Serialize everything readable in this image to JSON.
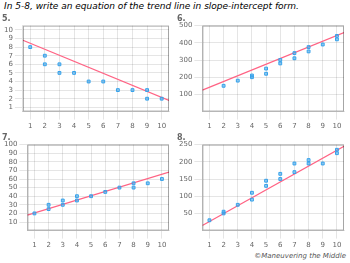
{
  "title": "In 5-8, write an equation of the trend line in slope-intercept form.",
  "annotations": [
    "©Maneuvering the Middle"
  ],
  "chart_data": [
    {
      "type": "scatter",
      "title": "5.",
      "grid": true,
      "xlim": [
        0.5,
        10.5
      ],
      "ylim": [
        0.5,
        10.5
      ],
      "xticks": [
        1,
        2,
        3,
        4,
        5,
        6,
        7,
        8,
        9,
        10
      ],
      "yticks": [
        1,
        2,
        3,
        4,
        5,
        6,
        7,
        8,
        9,
        10
      ],
      "series": [
        {
          "type": "scatter",
          "marker": "square",
          "x": [
            1,
            2,
            2,
            3,
            3,
            4,
            5,
            6,
            7,
            8,
            9,
            9,
            10
          ],
          "values": [
            8,
            7,
            6,
            6,
            5,
            5,
            4,
            4,
            3,
            3,
            2,
            3,
            2
          ]
        },
        {
          "type": "line",
          "line_style": "solid",
          "x": [
            0.5,
            10.5
          ],
          "values": [
            8.8,
            1.8
          ]
        }
      ]
    },
    {
      "type": "scatter",
      "title": "6.",
      "grid": true,
      "xlim": [
        0.5,
        10.5
      ],
      "ylim": [
        0,
        500
      ],
      "xticks": [
        1,
        2,
        3,
        4,
        5,
        6,
        7,
        8,
        9,
        10
      ],
      "yticks": [
        100,
        200,
        300,
        400,
        500
      ],
      "series": [
        {
          "type": "scatter",
          "marker": "square",
          "x": [
            2,
            3,
            4,
            4,
            5,
            5,
            6,
            6,
            7,
            7,
            8,
            8,
            9,
            10,
            10
          ],
          "values": [
            150,
            180,
            200,
            210,
            220,
            250,
            280,
            300,
            310,
            340,
            350,
            375,
            390,
            420,
            440
          ]
        },
        {
          "type": "line",
          "line_style": "solid",
          "x": [
            0.5,
            10.5
          ],
          "values": [
            125,
            460
          ]
        }
      ]
    },
    {
      "type": "scatter",
      "title": "7.",
      "grid": true,
      "xlim": [
        0.5,
        10.5
      ],
      "ylim": [
        0,
        100
      ],
      "xticks": [
        1,
        2,
        3,
        4,
        5,
        6,
        7,
        8,
        9,
        10
      ],
      "yticks": [
        10,
        20,
        30,
        40,
        50,
        60,
        70,
        80,
        90,
        100
      ],
      "series": [
        {
          "type": "scatter",
          "marker": "square",
          "x": [
            1,
            2,
            2,
            3,
            3,
            4,
            4,
            5,
            6,
            7,
            8,
            8,
            9,
            10
          ],
          "values": [
            20,
            25,
            30,
            30,
            35,
            35,
            40,
            40,
            45,
            50,
            55,
            50,
            55,
            60
          ]
        },
        {
          "type": "line",
          "line_style": "solid",
          "x": [
            0.5,
            10.5
          ],
          "values": [
            18,
            68
          ]
        }
      ]
    },
    {
      "type": "scatter",
      "title": "8.",
      "grid": true,
      "xlim": [
        0.5,
        10.5
      ],
      "ylim": [
        0,
        250
      ],
      "xticks": [
        1,
        2,
        3,
        4,
        5,
        6,
        7,
        8,
        9,
        10
      ],
      "yticks": [
        50,
        100,
        150,
        200,
        250
      ],
      "series": [
        {
          "type": "scatter",
          "marker": "square",
          "x": [
            1,
            2,
            2,
            3,
            4,
            4,
            5,
            5,
            6,
            6,
            7,
            7,
            8,
            8,
            9,
            10,
            10
          ],
          "values": [
            30,
            50,
            55,
            75,
            90,
            110,
            130,
            145,
            150,
            165,
            170,
            195,
            195,
            205,
            195,
            225,
            235
          ]
        },
        {
          "type": "line",
          "line_style": "solid",
          "x": [
            0.5,
            10.5
          ],
          "values": [
            15,
            245
          ]
        }
      ]
    }
  ]
}
